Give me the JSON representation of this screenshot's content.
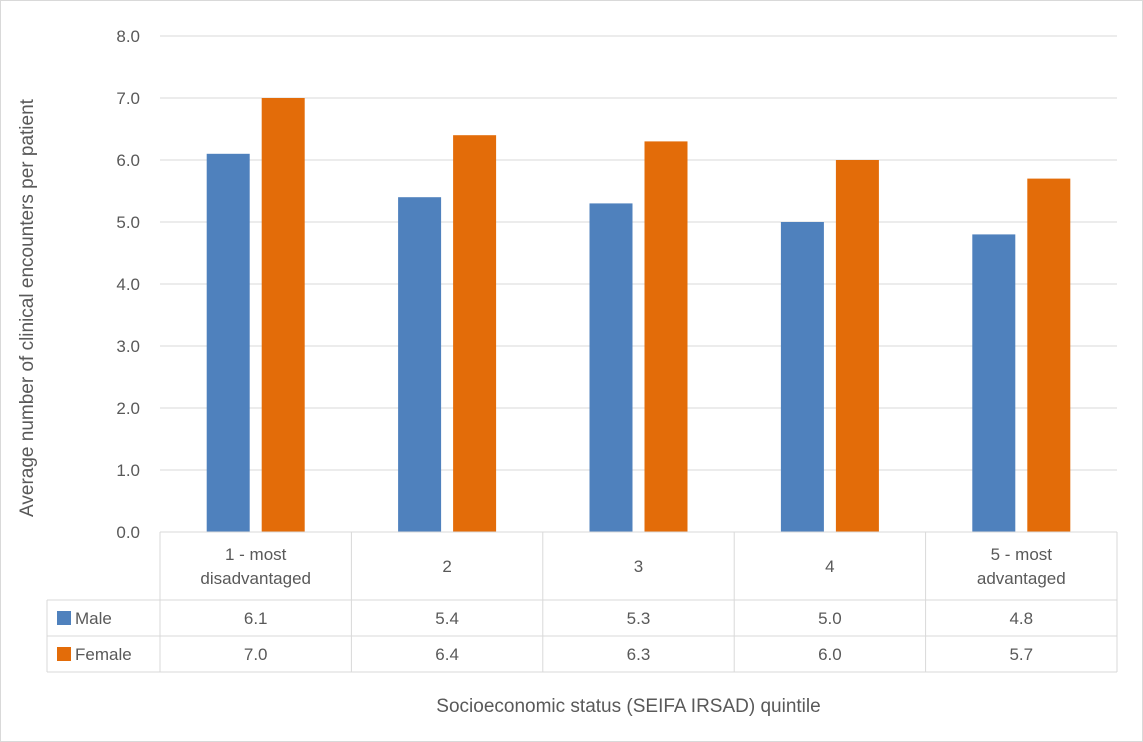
{
  "chart_data": {
    "type": "bar",
    "title": "",
    "xlabel": "Socioeconomic status (SEIFA IRSAD) quintile",
    "ylabel": "Average number of clinical encounters per patient",
    "ylim": [
      0,
      8
    ],
    "y_ticks": [
      "0.0",
      "1.0",
      "2.0",
      "3.0",
      "4.0",
      "5.0",
      "6.0",
      "7.0",
      "8.0"
    ],
    "grid": true,
    "legend": "data-table-rows",
    "categories": [
      [
        "1 - most",
        "disadvantaged"
      ],
      [
        "2"
      ],
      [
        "3"
      ],
      [
        "4"
      ],
      [
        "5 - most",
        "advantaged"
      ]
    ],
    "series": [
      {
        "name": "Male",
        "color": "#4f81bd",
        "values": [
          6.1,
          5.4,
          5.3,
          5.0,
          4.8
        ],
        "labels": [
          "6.1",
          "5.4",
          "5.3",
          "5.0",
          "4.8"
        ]
      },
      {
        "name": "Female",
        "color": "#e36c09",
        "values": [
          7.0,
          6.4,
          6.3,
          6.0,
          5.7
        ],
        "labels": [
          "7.0",
          "6.4",
          "6.3",
          "6.0",
          "5.7"
        ]
      }
    ]
  }
}
